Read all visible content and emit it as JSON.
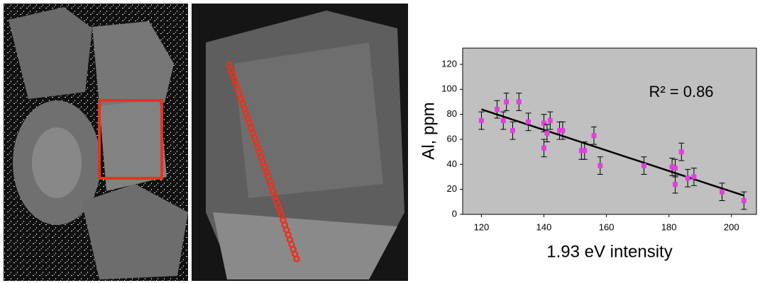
{
  "chart_data": {
    "type": "scatter",
    "x_label": "1.93 eV intensity",
    "y_label": "Al, ppm",
    "annotation": "R² = 0.86",
    "x": [
      120,
      125,
      127,
      128,
      130,
      132,
      135,
      140,
      140,
      141,
      142,
      145,
      146,
      152,
      153,
      156,
      158,
      172,
      181,
      182,
      182,
      184,
      186,
      188,
      197,
      204
    ],
    "series": [
      {
        "color": "#e33ee3",
        "values": [
          75,
          84,
          75,
          90,
          67,
          90,
          74,
          73,
          53,
          65,
          75,
          67,
          67,
          51,
          51,
          63,
          39,
          39,
          38,
          37,
          24,
          50,
          29,
          30,
          18,
          11
        ],
        "errors": [
          7,
          7,
          7,
          7,
          7,
          7,
          7,
          7,
          7,
          7,
          7,
          7,
          7,
          7,
          7,
          7,
          7,
          7,
          7,
          7,
          7,
          7,
          7,
          7,
          7,
          7
        ]
      }
    ],
    "trendline": {
      "color": "#000000",
      "x": [
        120,
        204
      ],
      "values": [
        84,
        15
      ]
    },
    "xlim": [
      114,
      208
    ],
    "ylim": [
      0,
      133
    ],
    "xticks": [
      120,
      140,
      160,
      180,
      200
    ],
    "yticks": [
      0,
      20,
      40,
      60,
      80,
      100,
      120
    ],
    "plot_background": "#c0c0c0"
  }
}
